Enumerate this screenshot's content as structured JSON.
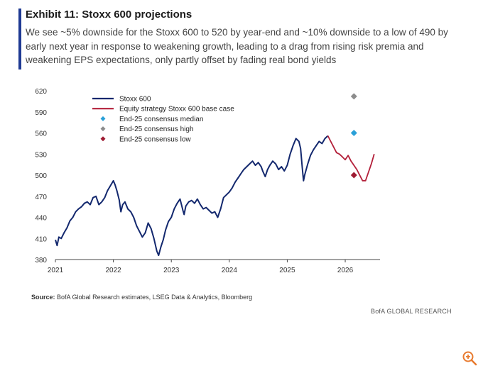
{
  "header": {
    "title": "Exhibit 11: Stoxx 600 projections",
    "subtitle": "We see ~5% downside for the Stoxx 600 to 520 by year-end and ~10% downside to a low of 490 by early next year in response to weakening growth, leading to a drag from rising risk premia and weakening EPS expectations, only partly offset by fading real bond yields"
  },
  "source": {
    "label": "Source:",
    "text": "BofA Global Research estimates, LSEG Data & Analytics, Bloomberg"
  },
  "footer": {
    "brand": "BofA GLOBAL RESEARCH"
  },
  "colors": {
    "history": "#13286e",
    "projection": "#b3203a",
    "median": "#2aa0d8",
    "high": "#8c8c8c",
    "low": "#9e1b32",
    "accent": "#1f3a93"
  },
  "icons": {
    "zoom": "zoom-in-icon"
  },
  "chart_data": {
    "type": "line",
    "title": "Stoxx 600 projections",
    "xlabel": "",
    "ylabel": "",
    "xlim": [
      2021.0,
      2026.6
    ],
    "ylim": [
      380,
      620
    ],
    "yticks": [
      380,
      410,
      440,
      470,
      500,
      530,
      560,
      590,
      620
    ],
    "xticks": [
      {
        "value": 2021,
        "label": "2021"
      },
      {
        "value": 2022,
        "label": "2022"
      },
      {
        "value": 2023,
        "label": "2023"
      },
      {
        "value": 2024,
        "label": "2024"
      },
      {
        "value": 2025,
        "label": "2025"
      },
      {
        "value": 2026,
        "label": "2026"
      }
    ],
    "grid": false,
    "legend_position": "top-left",
    "series": [
      {
        "name": "Stoxx 600",
        "kind": "line",
        "x": [
          2021.0,
          2021.03,
          2021.06,
          2021.1,
          2021.15,
          2021.2,
          2021.25,
          2021.3,
          2021.35,
          2021.4,
          2021.45,
          2021.5,
          2021.55,
          2021.6,
          2021.65,
          2021.7,
          2021.75,
          2021.8,
          2021.85,
          2021.9,
          2021.95,
          2022.0,
          2022.03,
          2022.06,
          2022.1,
          2022.13,
          2022.16,
          2022.2,
          2022.25,
          2022.3,
          2022.35,
          2022.4,
          2022.45,
          2022.5,
          2022.55,
          2022.6,
          2022.65,
          2022.7,
          2022.75,
          2022.78,
          2022.82,
          2022.86,
          2022.9,
          2022.95,
          2023.0,
          2023.05,
          2023.1,
          2023.15,
          2023.2,
          2023.22,
          2023.25,
          2023.3,
          2023.35,
          2023.4,
          2023.45,
          2023.5,
          2023.55,
          2023.6,
          2023.65,
          2023.7,
          2023.75,
          2023.8,
          2023.85,
          2023.9,
          2023.95,
          2024.0,
          2024.05,
          2024.1,
          2024.15,
          2024.2,
          2024.25,
          2024.3,
          2024.35,
          2024.4,
          2024.45,
          2024.5,
          2024.55,
          2024.58,
          2024.62,
          2024.66,
          2024.7,
          2024.75,
          2024.8,
          2024.85,
          2024.9,
          2024.95,
          2025.0,
          2025.05,
          2025.1,
          2025.15,
          2025.2,
          2025.23,
          2025.26,
          2025.28,
          2025.3,
          2025.35,
          2025.4,
          2025.45,
          2025.5,
          2025.55,
          2025.6,
          2025.65,
          2025.7
        ],
        "values": [
          408,
          400,
          412,
          410,
          418,
          425,
          435,
          440,
          448,
          452,
          455,
          460,
          462,
          458,
          468,
          470,
          458,
          462,
          468,
          478,
          485,
          492,
          486,
          478,
          465,
          448,
          458,
          462,
          452,
          448,
          440,
          428,
          420,
          412,
          418,
          432,
          424,
          410,
          392,
          386,
          398,
          408,
          422,
          434,
          440,
          452,
          460,
          466,
          450,
          444,
          456,
          462,
          464,
          460,
          466,
          458,
          452,
          454,
          450,
          446,
          448,
          440,
          452,
          468,
          472,
          476,
          482,
          490,
          496,
          502,
          508,
          512,
          516,
          520,
          514,
          518,
          512,
          505,
          498,
          508,
          514,
          520,
          516,
          508,
          512,
          506,
          514,
          530,
          542,
          552,
          548,
          538,
          510,
          492,
          500,
          515,
          528,
          536,
          542,
          548,
          545,
          552,
          556
        ]
      },
      {
        "name": "Equity strategy Stoxx 600 base case",
        "kind": "line",
        "x": [
          2025.7,
          2025.75,
          2025.8,
          2025.85,
          2025.9,
          2025.95,
          2026.0,
          2026.05,
          2026.1,
          2026.15,
          2026.2,
          2026.25,
          2026.3,
          2026.35,
          2026.4,
          2026.45,
          2026.5
        ],
        "values": [
          556,
          548,
          540,
          532,
          530,
          526,
          522,
          528,
          520,
          514,
          508,
          500,
          492,
          492,
          504,
          516,
          530
        ]
      },
      {
        "name": "End-25 consensus median",
        "kind": "marker",
        "x": [
          2026.15
        ],
        "values": [
          560
        ]
      },
      {
        "name": "End-25 consensus high",
        "kind": "marker",
        "x": [
          2026.15
        ],
        "values": [
          612
        ]
      },
      {
        "name": "End-25 consensus low",
        "kind": "marker",
        "x": [
          2026.15
        ],
        "values": [
          500
        ]
      }
    ]
  }
}
